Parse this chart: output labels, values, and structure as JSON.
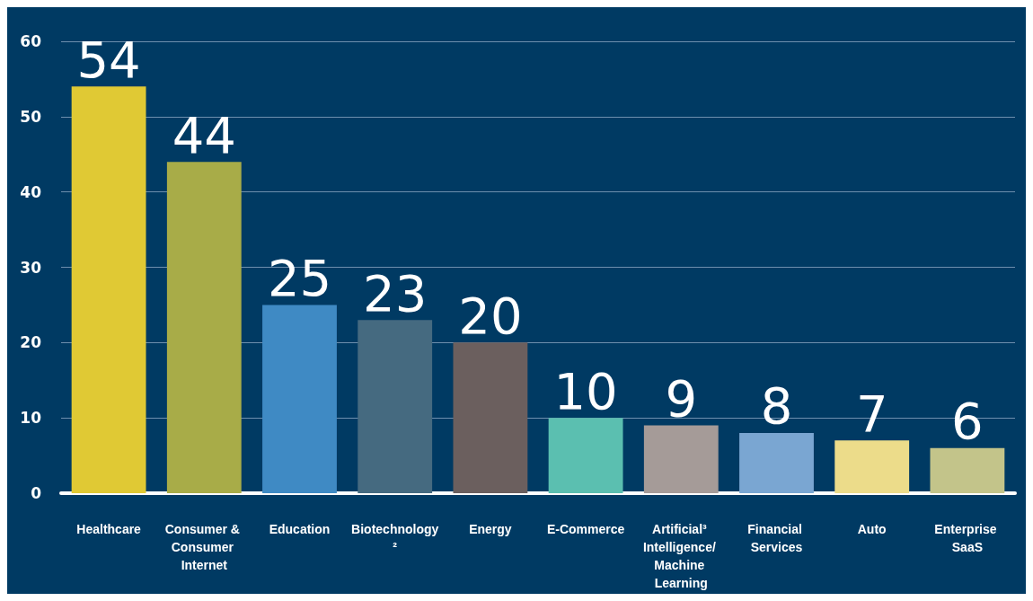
{
  "chart_data": {
    "type": "bar",
    "categories": [
      "Healthcare",
      "Consumer & Consumer Internet",
      "Education",
      "Biotechnology²",
      "Energy",
      "E-Commerce",
      "Artificial³ Intelligence/ Machine Learning",
      "Financial Services",
      "Auto",
      "Enterprise SaaS"
    ],
    "values": [
      54,
      44,
      25,
      23,
      20,
      10,
      9,
      8,
      7,
      6
    ],
    "colors": [
      "#e0c934",
      "#a8ac48",
      "#3f8ac4",
      "#456a80",
      "#6b5f5e",
      "#5bbfb0",
      "#a59b98",
      "#7aa6d2",
      "#ecdc8a",
      "#c3c48a"
    ],
    "ylim": [
      0,
      60
    ],
    "yticks": [
      0,
      10,
      20,
      30,
      40,
      50,
      60
    ],
    "grid": "y",
    "data_labels": true
  }
}
